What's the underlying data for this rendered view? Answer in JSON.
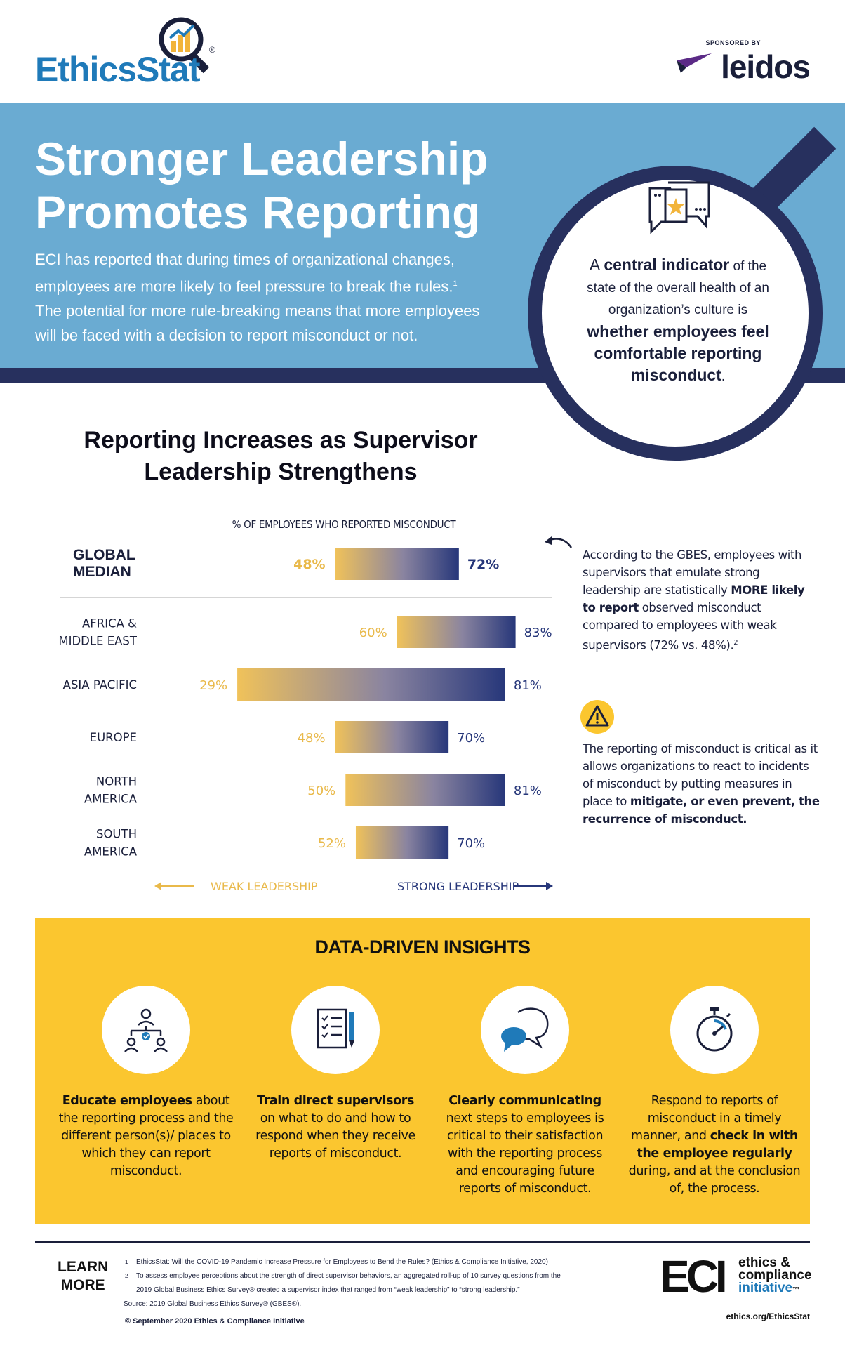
{
  "header": {
    "logo_text": "EthicsStat",
    "registered": "®",
    "sponsor_label": "SPONSORED BY",
    "sponsor_name": "leidos"
  },
  "banner": {
    "title_line1": "Stronger Leadership",
    "title_line2": "Promotes Reporting",
    "intro_line1": "ECI has reported that during times of organizational changes,",
    "intro_line2": "employees are more likely to feel pressure to break the rules.",
    "intro_footnote": "1",
    "intro_line3": "The potential for more rule-breaking means that more employees",
    "intro_line4": "will be faced with a decision to report misconduct or not."
  },
  "lens": {
    "a": "A ",
    "central_indicator": "central indicator",
    "of_the": " of the",
    "line2": "state of the overall health of an",
    "line3": "organization’s culture is",
    "bold1": "whether employees feel",
    "bold2": "comfortable reporting",
    "bold3": "misconduct",
    "period": "."
  },
  "chart_data": {
    "type": "bar",
    "title": "Reporting Increases as Supervisor Leadership Strengthens",
    "subtitle": "% OF EMPLOYEES WHO REPORTED MISCONDUCT",
    "x_range": [
      20,
      90
    ],
    "series": [
      {
        "name": "WEAK LEADERSHIP",
        "color": "#e9b94a"
      },
      {
        "name": "STRONG LEADERSHIP",
        "color": "#27377a"
      }
    ],
    "global": {
      "label_line1": "GLOBAL",
      "label_line2": "MEDIAN",
      "weak": 48,
      "strong": 72,
      "weak_label": "48%",
      "strong_label": "72%"
    },
    "regions": [
      {
        "label_line1": "AFRICA &",
        "label_line2": "MIDDLE EAST",
        "weak": 60,
        "strong": 83,
        "weak_label": "60%",
        "strong_label": "83%"
      },
      {
        "label_line1": "ASIA PACIFIC",
        "label_line2": "",
        "weak": 29,
        "strong": 81,
        "weak_label": "29%",
        "strong_label": "81%"
      },
      {
        "label_line1": "EUROPE",
        "label_line2": "",
        "weak": 48,
        "strong": 70,
        "weak_label": "48%",
        "strong_label": "70%"
      },
      {
        "label_line1": "NORTH",
        "label_line2": "AMERICA",
        "weak": 50,
        "strong": 81,
        "weak_label": "50%",
        "strong_label": "81%"
      },
      {
        "label_line1": "SOUTH",
        "label_line2": "AMERICA",
        "weak": 52,
        "strong": 70,
        "weak_label": "52%",
        "strong_label": "70%"
      }
    ],
    "weak_axis_label": "WEAK LEADERSHIP",
    "strong_axis_label": "STRONG LEADERSHIP"
  },
  "notes": {
    "note1_a": "According to the GBES, employees with supervisors that emulate strong leadership are statistically ",
    "note1_bold": "MORE likely to report",
    "note1_b": " observed misconduct compared to employees with weak supervisors (72% vs. 48%).",
    "note1_footnote": "2",
    "note2_a": "The reporting of misconduct is critical as it allows organizations to react to incidents of misconduct by putting measures in place to ",
    "note2_bold": "mitigate, or even prevent, the recurrence of misconduct."
  },
  "insights": {
    "title": "DATA-DRIVEN INSIGHTS",
    "items": [
      {
        "icon": "people-hierarchy-icon",
        "bold": "Educate employees",
        "text": " about the reporting process and the different person(s)/ places to which they can report misconduct."
      },
      {
        "icon": "checklist-pencil-icon",
        "bold": "Train direct supervisors",
        "text": " on what to do and how to respond when they receive reports of misconduct."
      },
      {
        "icon": "speech-bubbles-icon",
        "bold": "Clearly communicating",
        "text": " next steps to employees is critical to their satisfaction with the reporting process and encouraging future reports of misconduct."
      },
      {
        "icon": "stopwatch-icon",
        "pre": "Respond to reports of misconduct in a timely manner, and ",
        "bold": "check in with the employee regularly",
        "text": " during, and at the conclusion of, the process."
      }
    ]
  },
  "footer": {
    "learn_line1": "LEARN",
    "learn_line2": "MORE",
    "ref1_num": "1",
    "ref1": "EthicsStat: Will the COVID-19 Pandemic Increase Pressure for Employees to Bend the Rules? (Ethics & Compliance Initiative, 2020)",
    "ref2_num": "2",
    "ref2a": "To assess employee perceptions about the strength of direct supervisor behaviors, an aggregated roll-up of 10 survey questions from the",
    "ref2b": "2019 Global Business Ethics Survey® created a supervisor index that ranged from “weak leadership” to “strong leadership.”",
    "source": "Source: 2019 Global Business Ethics Survey® (GBES®).",
    "copyright": "© September 2020 Ethics & Compliance Initiative",
    "eci_letters": "ECI",
    "eci_word1": "ethics &",
    "eci_word2": "compliance",
    "eci_word3": "initiative",
    "eci_tm": "™",
    "url": "ethics.org/EthicsStat"
  },
  "colors": {
    "banner": "#6aabd2",
    "navy": "#27305e",
    "gold": "#fbc62f",
    "weak": "#e9b94a",
    "strong": "#27377a"
  }
}
